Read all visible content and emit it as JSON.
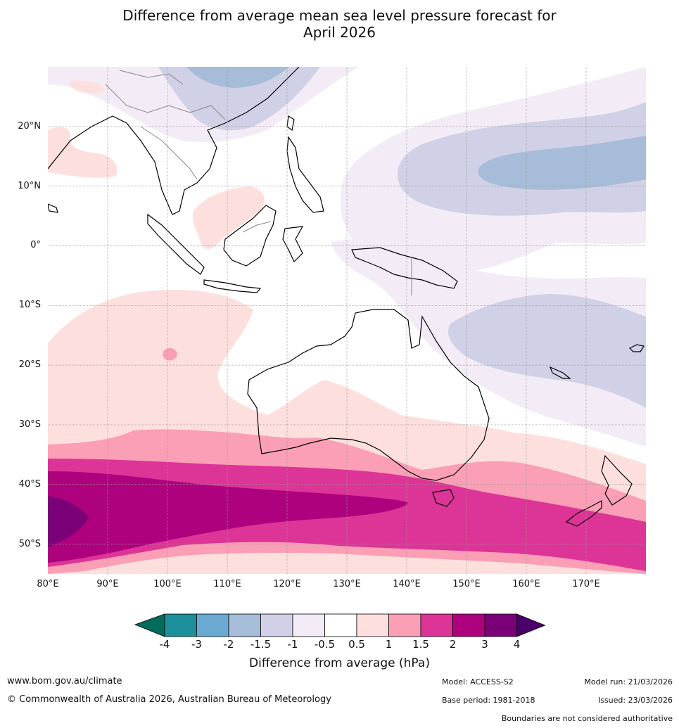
{
  "title": {
    "line1": "Difference from average mean sea level pressure forecast for",
    "line2": "April 2026"
  },
  "map": {
    "lon_range": [
      80,
      180
    ],
    "lat_range": [
      -55,
      30
    ],
    "lat_labels": [
      "20°N",
      "10°N",
      "0°",
      "10°S",
      "20°S",
      "30°S",
      "40°S",
      "50°S"
    ],
    "lon_labels": [
      "80°E",
      "90°E",
      "100°E",
      "110°E",
      "120°E",
      "130°E",
      "140°E",
      "150°E",
      "160°E",
      "170°E"
    ]
  },
  "colorbar": {
    "title": "Difference from average (hPa)",
    "ticks": [
      "-4",
      "-3",
      "-2",
      "-1.5",
      "-1",
      "-0.5",
      "0.5",
      "1",
      "1.5",
      "2",
      "3",
      "4"
    ],
    "colors": [
      "#1b8f9a",
      "#6aaad2",
      "#a6bcd8",
      "#d0d1e6",
      "#f3ecf6",
      "#ffffff",
      "#fde0dd",
      "#fa9fb5",
      "#dd3497",
      "#ae017e",
      "#7a0177"
    ],
    "under_color": "#016c59",
    "over_color": "#49006a"
  },
  "footer": {
    "url": "www.bom.gov.au/climate",
    "copyright": "© Commonwealth of Australia 2026, Australian Bureau of Meteorology",
    "model": "Model: ACCESS-S2",
    "base_period": "Base period: 1981-2018",
    "model_run": "Model run: 21/03/2026",
    "issued": "Issued: 23/03/2026",
    "disclaimer": "Boundaries are not considered authoritative"
  }
}
